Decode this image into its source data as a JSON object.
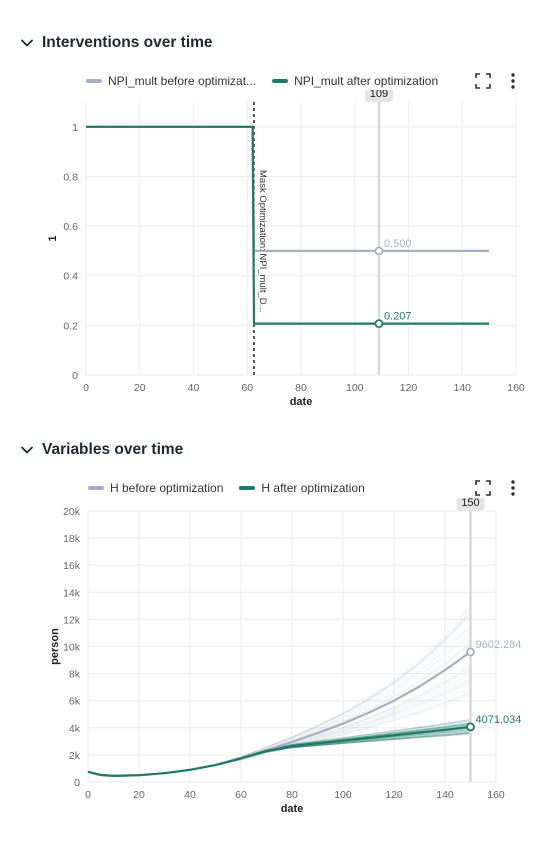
{
  "sections": {
    "interventions": {
      "title": "Interventions over time"
    },
    "variables": {
      "title": "Variables over time"
    }
  },
  "charts": {
    "interventions": {
      "legend": [
        "NPI_mult before optimizat...",
        "NPI_mult after optimization"
      ]
    },
    "variables": {
      "legend": [
        "H before optimization",
        "H after optimization"
      ]
    }
  },
  "icons": {
    "collapse": "chevron-down-icon",
    "expand": "expand-icon",
    "menu": "kebab-menu-icon"
  },
  "colors": {
    "before": "#a7afc2",
    "after": "#1f7a6a",
    "crosshair": "#d9d9d9"
  },
  "chart_data": [
    {
      "type": "line",
      "title": "Interventions over time",
      "xlabel": "date",
      "ylabel": "1",
      "xlim": [
        0,
        160
      ],
      "ylim": [
        0,
        1.1
      ],
      "xticks": [
        0,
        20,
        40,
        60,
        80,
        100,
        120,
        140,
        160
      ],
      "yticks": [
        0,
        0.2,
        0.4,
        0.6,
        0.8,
        1
      ],
      "grid": true,
      "legend_position": "top-left",
      "series": [
        {
          "name": "NPI_mult before optimizat...",
          "x": [
            0,
            62,
            62.5,
            150
          ],
          "y": [
            1,
            1,
            0.5,
            0.5
          ]
        },
        {
          "name": "NPI_mult after optimization",
          "x": [
            0,
            62,
            62.5,
            150
          ],
          "y": [
            1,
            1,
            0.207,
            0.207
          ]
        }
      ],
      "vline": {
        "x": 62.5,
        "label": "Mask Optimization: NPI_mult_D..."
      },
      "crosshair": {
        "x": 109,
        "label": "109"
      },
      "point_labels": [
        "0.500",
        "0.207"
      ]
    },
    {
      "type": "line",
      "title": "Variables over time",
      "xlabel": "date",
      "ylabel": "person",
      "xlim": [
        0,
        160
      ],
      "ylim": [
        0,
        20000
      ],
      "xticks": [
        0,
        20,
        40,
        60,
        80,
        100,
        120,
        140,
        160
      ],
      "yticks": [
        0,
        2000,
        4000,
        6000,
        8000,
        10000,
        12000,
        14000,
        16000,
        18000,
        20000
      ],
      "ytick_labels": [
        "0",
        "2k",
        "4k",
        "6k",
        "8k",
        "10k",
        "12k",
        "14k",
        "16k",
        "18k",
        "20k"
      ],
      "grid": true,
      "legend_position": "top-left",
      "series": [
        {
          "name": "H before optimization",
          "x": [
            0,
            5,
            10,
            20,
            30,
            40,
            50,
            60,
            70,
            80,
            90,
            100,
            110,
            120,
            130,
            140,
            150
          ],
          "y": [
            750,
            520,
            450,
            500,
            650,
            900,
            1250,
            1750,
            2350,
            2950,
            3600,
            4300,
            5100,
            6000,
            7050,
            8250,
            9602.284
          ]
        },
        {
          "name": "H after optimization",
          "x": [
            0,
            5,
            10,
            20,
            30,
            40,
            50,
            60,
            70,
            80,
            90,
            100,
            110,
            120,
            130,
            140,
            150
          ],
          "y": [
            750,
            520,
            450,
            500,
            650,
            900,
            1250,
            1750,
            2300,
            2650,
            2850,
            3050,
            3250,
            3450,
            3650,
            3850,
            4071.034
          ]
        }
      ],
      "crosshair": {
        "x": 150,
        "label": "150"
      },
      "point_labels": [
        "9602.284",
        "4071.034"
      ]
    }
  ]
}
